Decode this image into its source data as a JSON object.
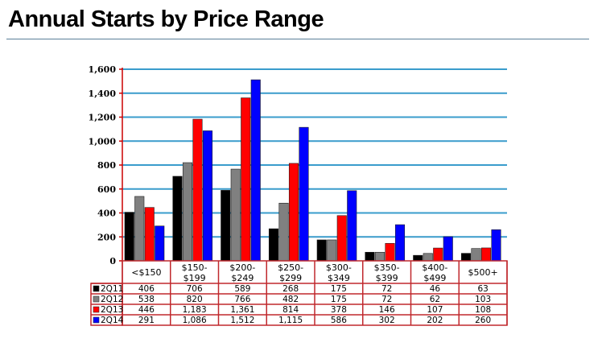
{
  "title": "Annual Starts by Price Range",
  "chart_data": {
    "type": "bar",
    "title": "Annual Starts by Price Range",
    "xlabel": "",
    "ylabel": "",
    "ylim": [
      0,
      1600
    ],
    "yticks": [
      "0",
      "200",
      "400",
      "600",
      "800",
      "1,000",
      "1,200",
      "1,400",
      "1,600"
    ],
    "grid": true,
    "legend_placement": "table-left",
    "categories": [
      [
        "<$150"
      ],
      [
        "$150-",
        "$199"
      ],
      [
        "$200-",
        "$249"
      ],
      [
        "$250-",
        "$299"
      ],
      [
        "$300-",
        "$349"
      ],
      [
        "$350-",
        "$399"
      ],
      [
        "$400-",
        "$499"
      ],
      [
        "$500+"
      ]
    ],
    "series": [
      {
        "name": "2Q11",
        "color": "#000000",
        "values": [
          406,
          706,
          589,
          268,
          175,
          72,
          46,
          63
        ],
        "labels": [
          "406",
          "706",
          "589",
          "268",
          "175",
          "72",
          "46",
          "63"
        ]
      },
      {
        "name": "2Q12",
        "color": "#808080",
        "values": [
          538,
          820,
          766,
          482,
          175,
          72,
          62,
          103
        ],
        "labels": [
          "538",
          "820",
          "766",
          "482",
          "175",
          "72",
          "62",
          "103"
        ]
      },
      {
        "name": "2Q13",
        "color": "#ff0000",
        "values": [
          446,
          1183,
          1361,
          814,
          378,
          146,
          107,
          108
        ],
        "labels": [
          "446",
          "1,183",
          "1,361",
          "814",
          "378",
          "146",
          "107",
          "108"
        ]
      },
      {
        "name": "2Q14",
        "color": "#0000ff",
        "values": [
          291,
          1086,
          1512,
          1115,
          586,
          302,
          202,
          260
        ],
        "labels": [
          "291",
          "1,086",
          "1,512",
          "1,115",
          "586",
          "302",
          "202",
          "260"
        ]
      }
    ]
  }
}
